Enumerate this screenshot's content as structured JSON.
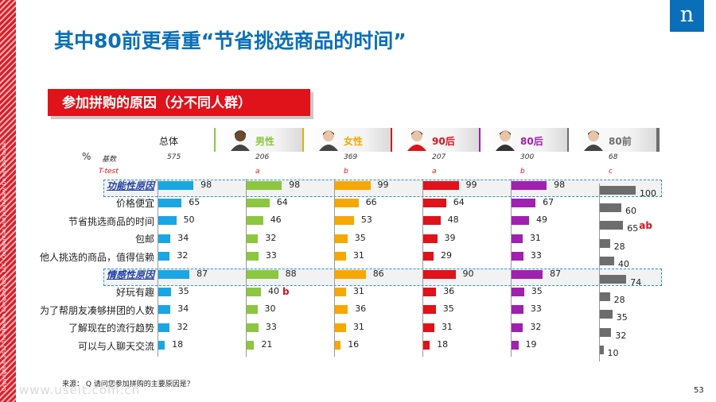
{
  "copyright": "Copyright © 2017 The Nielsen Company (US), LLC. Confidential and proprietary. Do not distribute.",
  "brand": {
    "letter": "n",
    "color": "#0a6fb8"
  },
  "title": "其中80前更看重“节省挑选商品的时间”",
  "section_title": "参加拼购的原因（分不同人群）",
  "source_note": "来源：  Q 请问您参加拼购的主要原因是？",
  "page_number": "53",
  "watermark": "www.useit.com.cn",
  "colors": {
    "accent_red": "#e0121a",
    "group_highlight_border": "#2a8fd8",
    "group_label": "#1f3ea8"
  },
  "labels": {
    "percent": "%",
    "base": "基数",
    "ttest": "T-test"
  },
  "chart_data": {
    "type": "bar",
    "orientation": "horizontal",
    "unit": "%",
    "categories": [
      "功能性原因",
      "价格便宜",
      "节省挑选商品的时间",
      "包邮",
      "他人挑选的商品，值得信赖",
      "情感性原因",
      "好玩有趣",
      "为了帮朋友凑够拼团的人数",
      "了解现在的流行趋势",
      "可以与人聊天交流"
    ],
    "group_rows": [
      0,
      5
    ],
    "series": [
      {
        "name": "总体",
        "color": "#1aa6e4",
        "base": "575",
        "ttest": "",
        "icon": "total-icon",
        "values": [
          98,
          65,
          50,
          34,
          32,
          87,
          35,
          34,
          32,
          18
        ],
        "sig": [
          "",
          "",
          "",
          "",
          "",
          "",
          "",
          "",
          "",
          ""
        ]
      },
      {
        "name": "男性",
        "color": "#8dc63f",
        "base": "206",
        "ttest": "a",
        "icon": "male-avatar-icon",
        "values": [
          98,
          64,
          46,
          32,
          33,
          88,
          40,
          30,
          33,
          21
        ],
        "sig": [
          "",
          "",
          "",
          "",
          "",
          "",
          "b",
          "",
          "",
          ""
        ]
      },
      {
        "name": "女性",
        "color": "#f7a800",
        "base": "369",
        "ttest": "b",
        "icon": "female-avatar-icon",
        "values": [
          99,
          66,
          53,
          35,
          31,
          86,
          31,
          36,
          31,
          16
        ],
        "sig": [
          "",
          "",
          "",
          "",
          "",
          "",
          "",
          "",
          "",
          ""
        ]
      },
      {
        "name": "90后",
        "color": "#e0121a",
        "base": "207",
        "ttest": "a",
        "icon": "post90-avatar-icon",
        "values": [
          99,
          64,
          48,
          39,
          29,
          90,
          36,
          35,
          31,
          18
        ],
        "sig": [
          "",
          "",
          "",
          "",
          "",
          "",
          "",
          "",
          "",
          ""
        ]
      },
      {
        "name": "80后",
        "color": "#a020b0",
        "base": "300",
        "ttest": "b",
        "icon": "post80-avatar-icon",
        "values": [
          98,
          67,
          49,
          31,
          33,
          87,
          35,
          33,
          32,
          19
        ],
        "sig": [
          "",
          "",
          "",
          "",
          "",
          "",
          "",
          "",
          "",
          ""
        ]
      },
      {
        "name": "80前",
        "color": "#6d6d6d",
        "base": "68",
        "ttest": "c",
        "icon": "pre80-avatar-icon",
        "values": [
          100,
          60,
          65,
          28,
          40,
          74,
          28,
          35,
          32,
          10
        ],
        "sig": [
          "",
          "",
          "ab",
          "",
          "",
          "",
          "",
          "",
          "",
          ""
        ]
      }
    ]
  }
}
